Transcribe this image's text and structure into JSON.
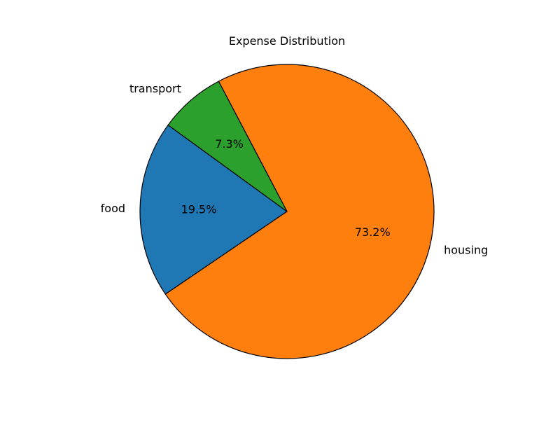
{
  "chart_data": {
    "type": "pie",
    "title": "Expense Distribution",
    "categories": [
      "food",
      "housing",
      "transport"
    ],
    "values": [
      19.5,
      73.2,
      7.3
    ],
    "percent_labels": [
      "19.5%",
      "73.2%",
      "7.3%"
    ],
    "colors": [
      "#1f77b4",
      "#ff7f0e",
      "#2ca02c"
    ],
    "start_angle_deg": 144,
    "direction": "counterclockwise",
    "edge_color": "#000000",
    "legend": "none"
  }
}
